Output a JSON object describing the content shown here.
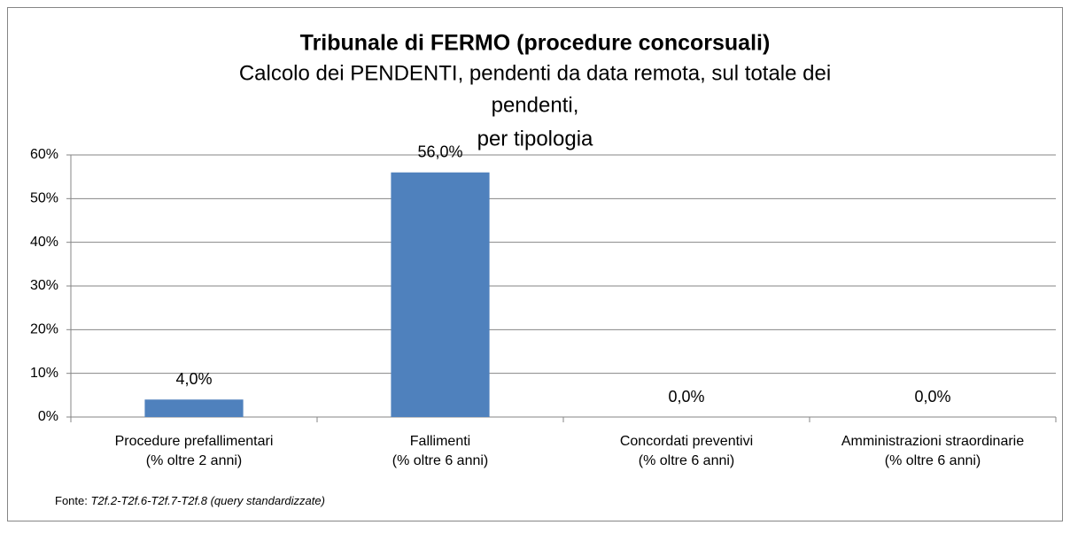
{
  "chart_data": {
    "type": "bar",
    "title": "Tribunale di FERMO (procedure concorsuali)",
    "subtitle": [
      "Calcolo dei PENDENTI, pendenti da data remota, sul totale dei",
      "pendenti,",
      "per tipologia"
    ],
    "categories": [
      [
        "Procedure prefallimentari",
        "(% oltre 2 anni)"
      ],
      [
        "Fallimenti",
        "(% oltre 6 anni)"
      ],
      [
        "Concordati preventivi",
        "(% oltre 6 anni)"
      ],
      [
        "Amministrazioni straordinarie",
        "(% oltre 6 anni)"
      ]
    ],
    "values": [
      4,
      56,
      0,
      0
    ],
    "value_labels": [
      "4,0%",
      "56,0%",
      "0,0%",
      "0,0%"
    ],
    "color": "#4f81bd",
    "ylim": [
      0,
      60
    ],
    "yticks": [
      {
        "value": 0,
        "label": "0%"
      },
      {
        "value": 10,
        "label": "10%"
      },
      {
        "value": 20,
        "label": "20%"
      },
      {
        "value": 30,
        "label": "30%"
      },
      {
        "value": 40,
        "label": "40%"
      },
      {
        "value": 50,
        "label": "50%"
      },
      {
        "value": 60,
        "label": "60%"
      }
    ],
    "grid": true,
    "source": {
      "label": "Fonte:",
      "text": "T2f.2-T2f.6-T2f.7-T2f.8 (query standardizzate)"
    }
  }
}
